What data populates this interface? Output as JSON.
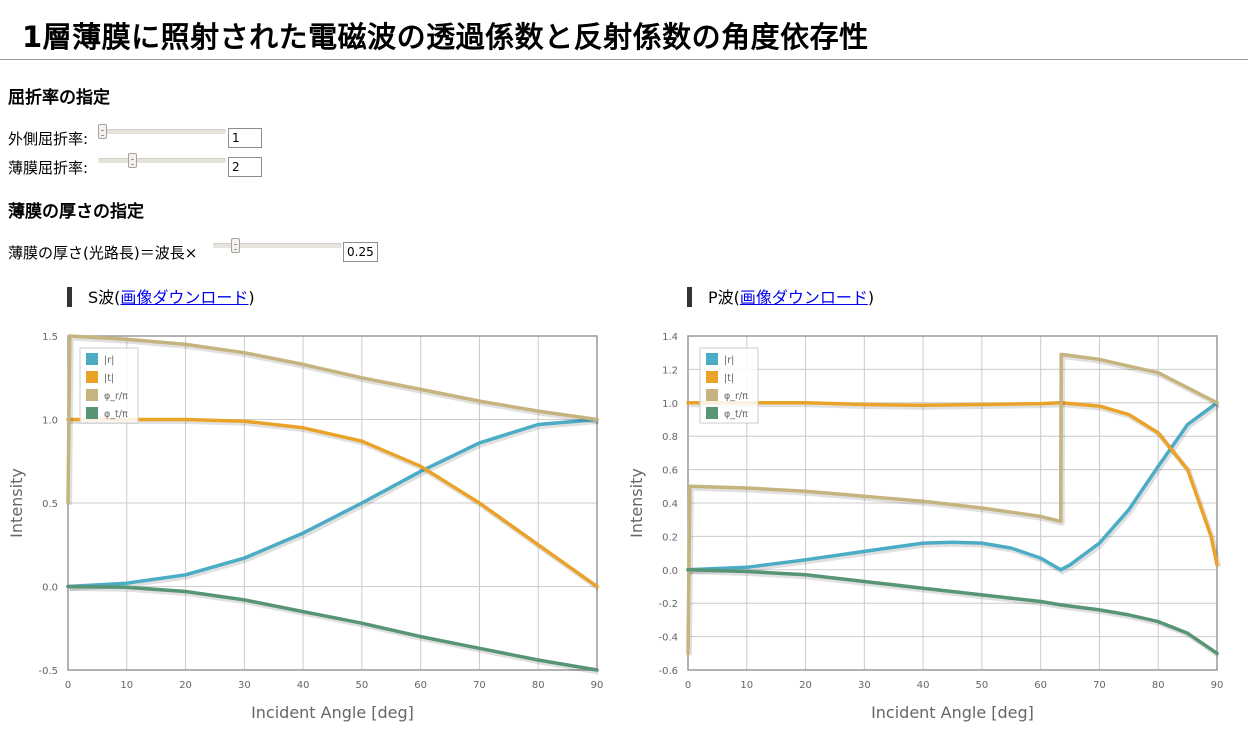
{
  "page": {
    "title": "1層薄膜に照射された電磁波の透過係数と反射係数の角度依存性"
  },
  "refractive": {
    "heading": "屈折率の指定",
    "outer": {
      "label": "外側屈折率:",
      "value": "1",
      "level": 0.0
    },
    "film": {
      "label": "薄膜屈折率:",
      "value": "2",
      "level": 0.25
    }
  },
  "thickness": {
    "heading": "薄膜の厚さの指定",
    "label": "薄膜の厚さ(光路長)＝波長×",
    "value": "0.25",
    "level": 0.15
  },
  "charts": {
    "s": {
      "prefix": "S波(",
      "link": "画像ダウンロード",
      "suffix": ")"
    },
    "p": {
      "prefix": "P波(",
      "link": "画像ダウンロード",
      "suffix": ")"
    }
  },
  "legend_colors": {
    "r": "#4bacc6",
    "t": "#eaa228",
    "phi_r": "#c5b47f",
    "phi_t": "#579575"
  },
  "chart_data": [
    {
      "type": "line",
      "title": "S波",
      "xlabel": "Incident Angle [deg]",
      "ylabel": "Intensity",
      "xlim": [
        0,
        90
      ],
      "ylim": [
        -0.5,
        1.5
      ],
      "xticks": [
        "0",
        "10",
        "20",
        "30",
        "40",
        "50",
        "60",
        "70",
        "80",
        "90"
      ],
      "yticks": [
        "-0.5",
        "0.0",
        "0.5",
        "1.0",
        "1.5"
      ],
      "grid": true,
      "legend": "top-left",
      "series": [
        {
          "name": "|r|",
          "x": [
            0,
            10,
            20,
            30,
            40,
            50,
            60,
            70,
            80,
            90
          ],
          "y": [
            0.0,
            0.02,
            0.07,
            0.17,
            0.32,
            0.5,
            0.69,
            0.86,
            0.97,
            1.0
          ]
        },
        {
          "name": "|t|",
          "x": [
            0,
            10,
            20,
            30,
            40,
            50,
            60,
            70,
            80,
            90
          ],
          "y": [
            1.0,
            1.0,
            1.0,
            0.99,
            0.95,
            0.87,
            0.72,
            0.5,
            0.25,
            0.0
          ]
        },
        {
          "name": "φ_r/π",
          "x": [
            0,
            0.3,
            10,
            20,
            30,
            40,
            50,
            60,
            70,
            80,
            90
          ],
          "y": [
            0.5,
            1.5,
            1.48,
            1.45,
            1.4,
            1.33,
            1.25,
            1.18,
            1.11,
            1.05,
            1.0
          ]
        },
        {
          "name": "φ_t/π",
          "x": [
            0,
            10,
            20,
            30,
            40,
            50,
            60,
            70,
            80,
            90
          ],
          "y": [
            0.0,
            -0.005,
            -0.03,
            -0.08,
            -0.15,
            -0.22,
            -0.3,
            -0.37,
            -0.44,
            -0.5
          ]
        }
      ]
    },
    {
      "type": "line",
      "title": "P波",
      "xlabel": "Incident Angle [deg]",
      "ylabel": "Intensity",
      "xlim": [
        0,
        90
      ],
      "ylim": [
        -0.6,
        1.4
      ],
      "xticks": [
        "0",
        "10",
        "20",
        "30",
        "40",
        "50",
        "60",
        "70",
        "80",
        "90"
      ],
      "yticks": [
        "-0.6",
        "-0.4",
        "-0.2",
        "0.0",
        "0.2",
        "0.4",
        "0.6",
        "0.8",
        "1.0",
        "1.2",
        "1.4"
      ],
      "grid": true,
      "legend": "top-left",
      "series": [
        {
          "name": "|r|",
          "x": [
            0,
            10,
            20,
            30,
            40,
            45,
            50,
            55,
            60,
            63.4,
            65,
            70,
            75,
            80,
            85,
            90
          ],
          "y": [
            0.0,
            0.015,
            0.06,
            0.11,
            0.16,
            0.165,
            0.16,
            0.13,
            0.07,
            0.0,
            0.03,
            0.16,
            0.36,
            0.62,
            0.87,
            1.0
          ]
        },
        {
          "name": "|t|",
          "x": [
            0,
            10,
            20,
            30,
            40,
            50,
            60,
            63.4,
            70,
            75,
            80,
            85,
            89,
            90
          ],
          "y": [
            1.0,
            1.0,
            1.0,
            0.99,
            0.985,
            0.99,
            0.995,
            1.0,
            0.98,
            0.93,
            0.82,
            0.6,
            0.2,
            0.03
          ]
        },
        {
          "name": "φ_r/π",
          "x": [
            0,
            0.3,
            10,
            20,
            30,
            40,
            50,
            60,
            63.4,
            63.5,
            70,
            80,
            90
          ],
          "y": [
            -0.5,
            0.5,
            0.49,
            0.47,
            0.44,
            0.41,
            0.37,
            0.32,
            0.29,
            1.29,
            1.26,
            1.18,
            1.0
          ]
        },
        {
          "name": "φ_t/π",
          "x": [
            0,
            10,
            20,
            30,
            40,
            50,
            60,
            63.4,
            70,
            75,
            80,
            85,
            90
          ],
          "y": [
            0.0,
            -0.01,
            -0.03,
            -0.07,
            -0.11,
            -0.15,
            -0.19,
            -0.21,
            -0.24,
            -0.27,
            -0.31,
            -0.38,
            -0.5
          ]
        }
      ]
    }
  ]
}
